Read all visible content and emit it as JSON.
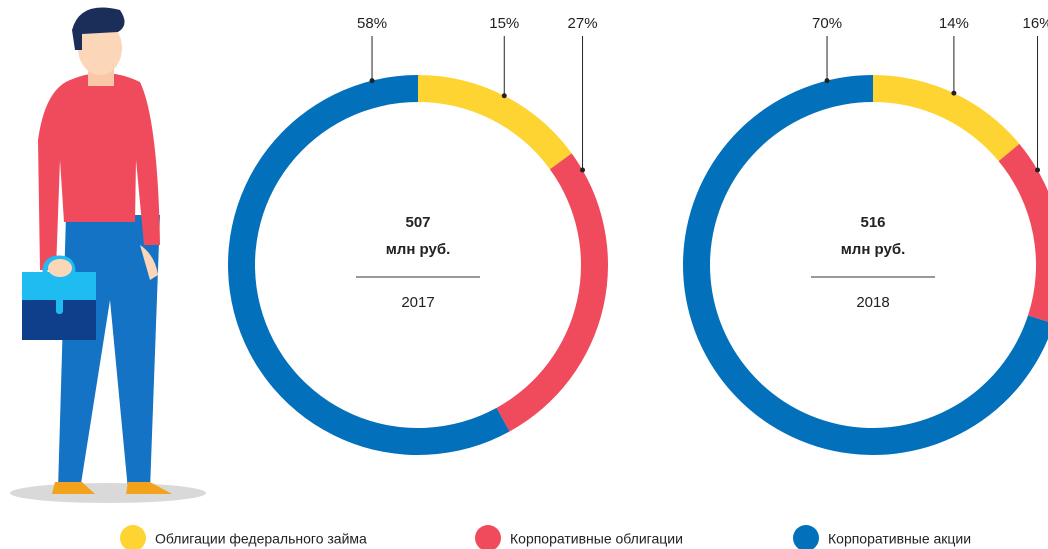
{
  "legend": {
    "categories": [
      "Облигации федерального займа",
      "Корпоративные облигации",
      "Корпоративные акции"
    ],
    "colors": [
      "#fed432",
      "#f04b5c",
      "#0270bb"
    ]
  },
  "chart_data": [
    {
      "type": "pie",
      "values": [
        15,
        27,
        58
      ],
      "value_labels": [
        "15%",
        "27%",
        "58%"
      ],
      "center_value": 507,
      "center_unit": "млн руб.",
      "year": 2017
    },
    {
      "type": "pie",
      "values": [
        14,
        16,
        70
      ],
      "value_labels": [
        "14%",
        "16%",
        "70%"
      ],
      "center_value": 516,
      "center_unit": "млн руб.",
      "year": 2018
    }
  ]
}
